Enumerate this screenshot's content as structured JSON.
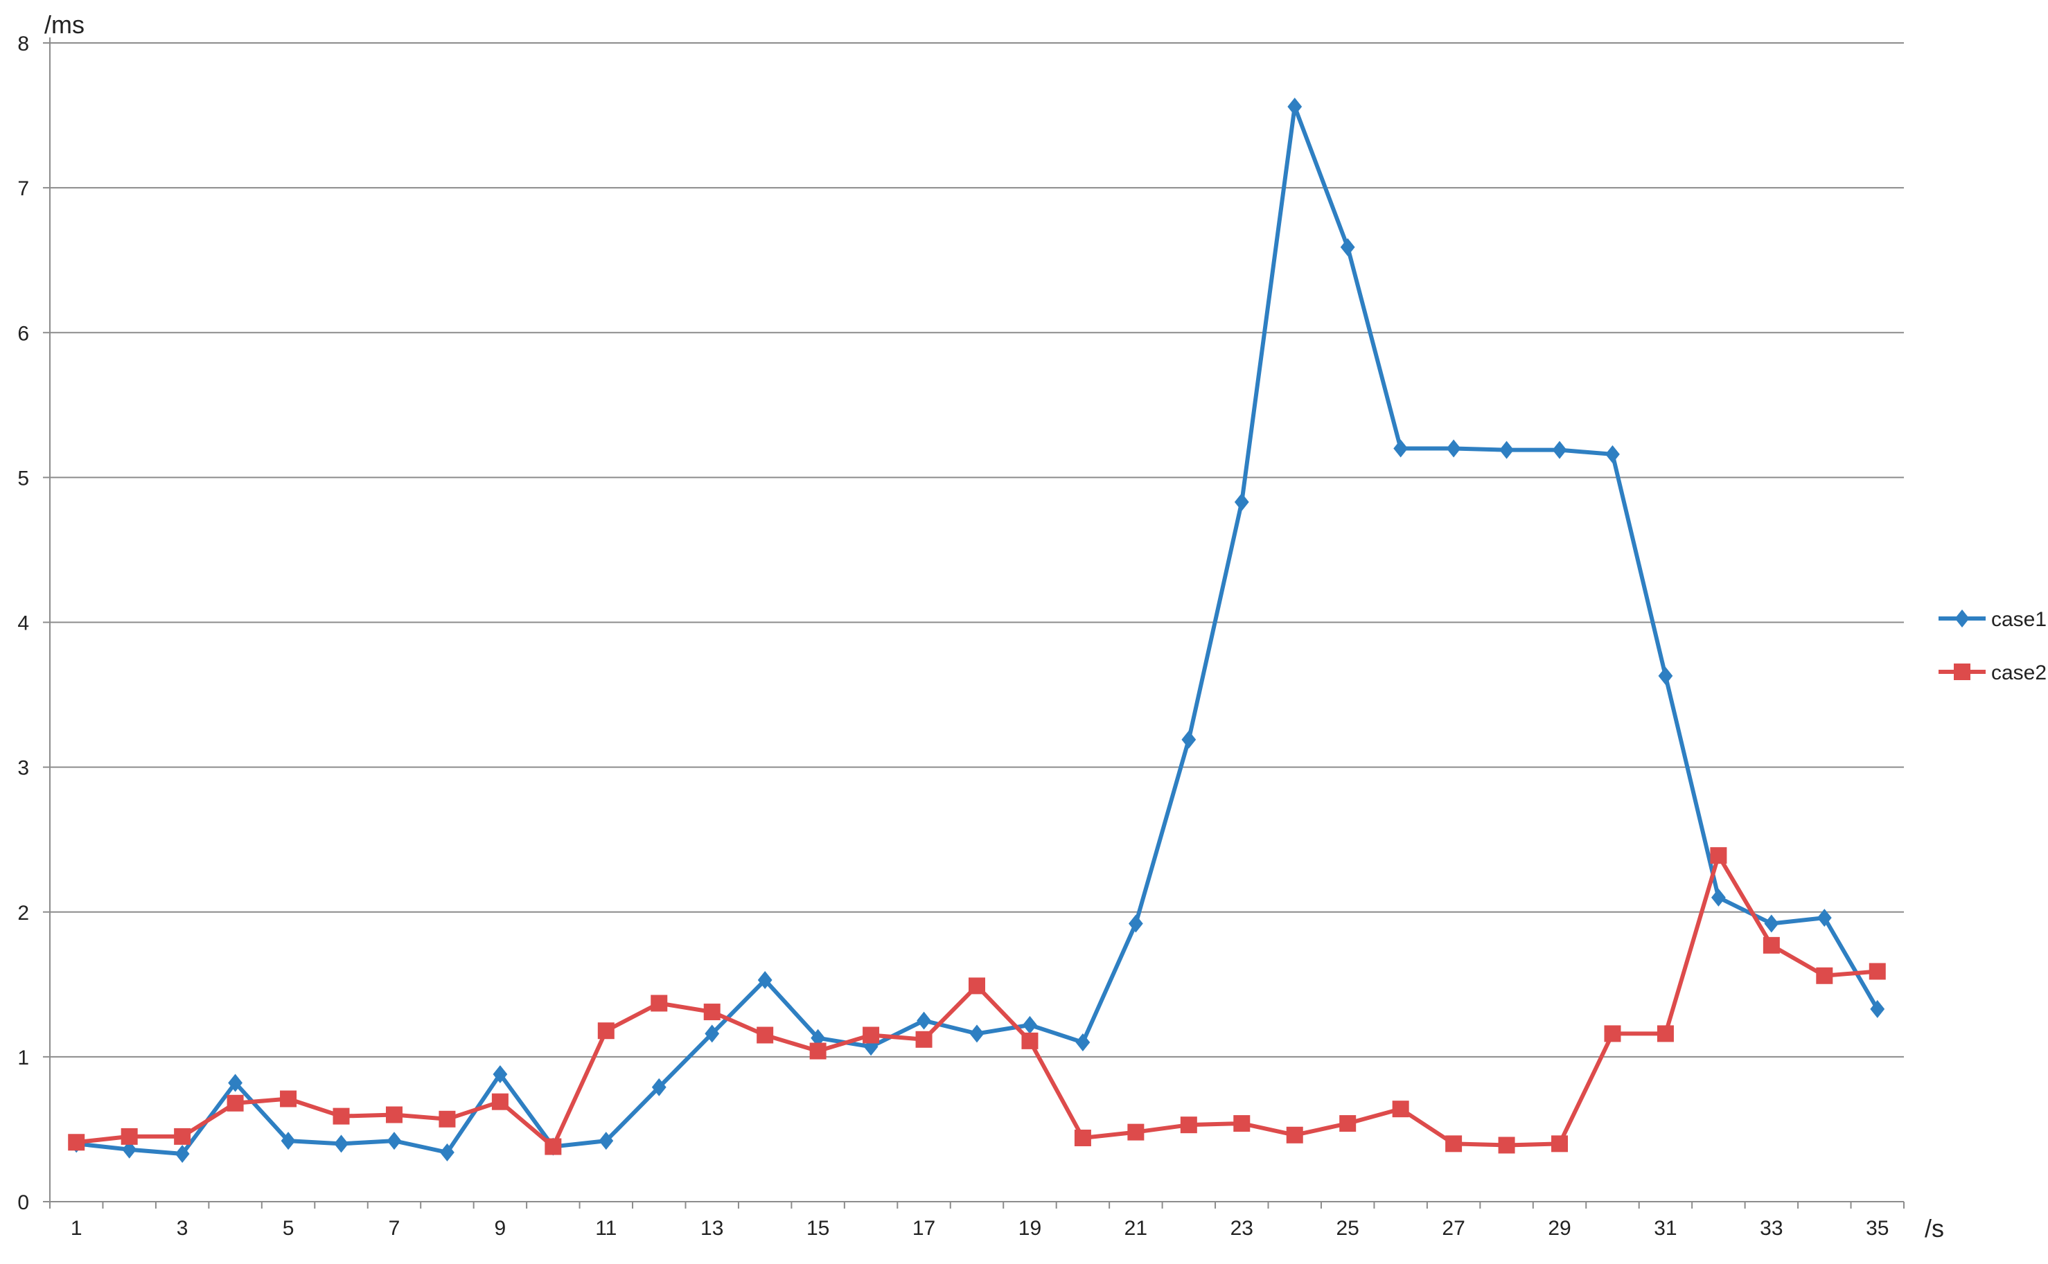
{
  "chart_data": {
    "type": "line",
    "title": "",
    "xlabel": "/s",
    "ylabel": "/ms",
    "x": [
      1,
      2,
      3,
      4,
      5,
      6,
      7,
      8,
      9,
      10,
      11,
      12,
      13,
      14,
      15,
      16,
      17,
      18,
      19,
      20,
      21,
      22,
      23,
      24,
      25,
      26,
      27,
      28,
      29,
      30,
      31,
      32,
      33,
      34,
      35
    ],
    "x_tick_labels": [
      "1",
      "3",
      "5",
      "7",
      "9",
      "11",
      "13",
      "15",
      "17",
      "19",
      "21",
      "23",
      "25",
      "27",
      "29",
      "31",
      "33",
      "35"
    ],
    "ylim": [
      0,
      8
    ],
    "y_ticks": [
      "0",
      "1",
      "2",
      "3",
      "4",
      "5",
      "6",
      "7",
      "8"
    ],
    "grid": "horizontal",
    "legend_position": "right",
    "series": [
      {
        "name": "case1",
        "color": "#2e7fc2",
        "marker": "diamond",
        "values": [
          0.4,
          0.36,
          0.33,
          0.82,
          0.42,
          0.4,
          0.42,
          0.34,
          0.88,
          0.38,
          0.42,
          0.79,
          1.16,
          1.53,
          1.13,
          1.07,
          1.25,
          1.16,
          1.22,
          1.1,
          1.92,
          3.19,
          4.83,
          7.56,
          6.59,
          5.2,
          5.2,
          5.19,
          5.19,
          5.16,
          3.63,
          2.1,
          1.92,
          1.96,
          1.33
        ]
      },
      {
        "name": "case2",
        "color": "#dd4b4b",
        "marker": "square",
        "values": [
          0.41,
          0.45,
          0.45,
          0.68,
          0.71,
          0.59,
          0.6,
          0.57,
          0.69,
          0.38,
          1.18,
          1.37,
          1.31,
          1.15,
          1.04,
          1.15,
          1.12,
          1.49,
          1.11,
          0.44,
          0.48,
          0.53,
          0.54,
          0.46,
          0.54,
          0.64,
          0.4,
          0.39,
          0.4,
          1.16,
          1.16,
          2.39,
          1.77,
          1.56,
          1.59
        ]
      }
    ]
  }
}
